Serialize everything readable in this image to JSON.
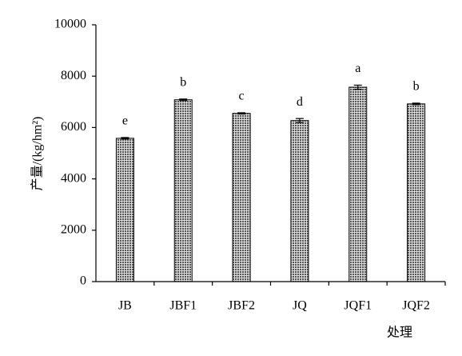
{
  "chart_data": {
    "type": "bar",
    "y_label": "产量/(kg/hm²)",
    "x_label": "处理",
    "categories": [
      "JB",
      "JBF1",
      "JBF2",
      "JQ",
      "JQF1",
      "JQF2"
    ],
    "values": [
      5580,
      7080,
      6550,
      6270,
      7570,
      6920
    ],
    "errors": [
      30,
      30,
      25,
      80,
      80,
      30
    ],
    "annotations": [
      "e",
      "b",
      "c",
      "d",
      "a",
      "b"
    ],
    "color": "#777777",
    "ylim": [
      0,
      10000
    ],
    "yticks": [
      0,
      2000,
      4000,
      6000,
      8000,
      10000
    ]
  }
}
